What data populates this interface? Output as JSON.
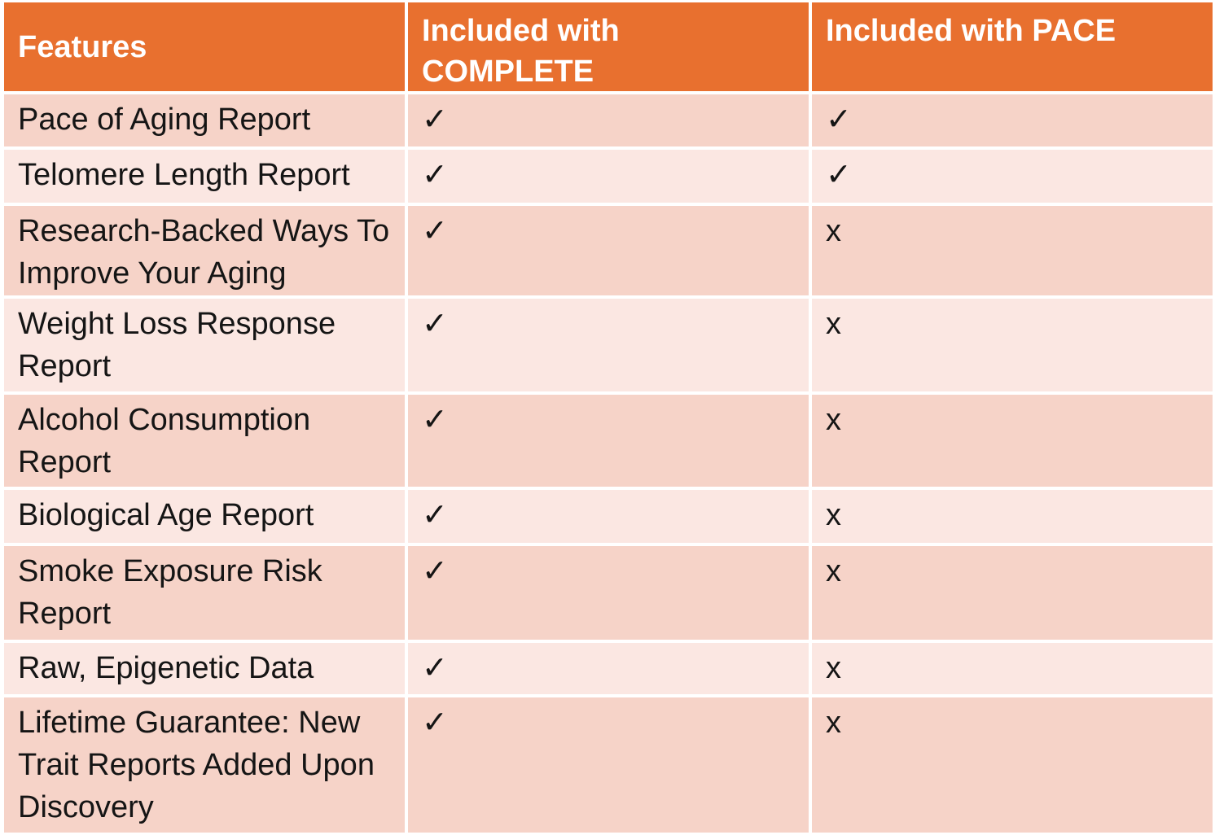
{
  "table": {
    "columns": [
      {
        "label": "Features"
      },
      {
        "label": "Included with COMPLETE"
      },
      {
        "label": "Included with PACE"
      }
    ],
    "rows": [
      {
        "feature": "Pace of Aging Report",
        "complete": "✓",
        "pace": "✓"
      },
      {
        "feature": "Telomere Length Report",
        "complete": "✓",
        "pace": "✓"
      },
      {
        "feature": "Research-Backed Ways To Improve Your Aging",
        "complete": "✓",
        "pace": "x"
      },
      {
        "feature": "Weight Loss Response Report",
        "complete": "✓",
        "pace": "x"
      },
      {
        "feature": "Alcohol Consumption Report",
        "complete": "✓",
        "pace": "x"
      },
      {
        "feature": "Biological Age Report",
        "complete": "✓",
        "pace": "x"
      },
      {
        "feature": "Smoke Exposure Risk Report",
        "complete": "✓",
        "pace": "x"
      },
      {
        "feature": "Raw, Epigenetic Data",
        "complete": "✓",
        "pace": "x"
      },
      {
        "feature": "Lifetime Guarantee: New Trait Reports Added Upon Discovery",
        "complete": "✓",
        "pace": "x"
      }
    ],
    "marks": {
      "included": "✓",
      "not_included": "x"
    },
    "colors": {
      "header_bg": "#E8702F",
      "header_text": "#FFFFFF",
      "row_dark": "#F6D3C8",
      "row_light": "#FBE7E2",
      "grid_lines": "#FFFFFF",
      "body_text": "#151515"
    }
  },
  "chart_data": {
    "type": "table",
    "title": "",
    "columns": [
      "Features",
      "Included with COMPLETE",
      "Included with PACE"
    ],
    "rows": [
      [
        "Pace of Aging Report",
        "✓",
        "✓"
      ],
      [
        "Telomere Length Report",
        "✓",
        "✓"
      ],
      [
        "Research-Backed Ways To Improve Your Aging",
        "✓",
        "x"
      ],
      [
        "Weight Loss Response Report",
        "✓",
        "x"
      ],
      [
        "Alcohol Consumption Report",
        "✓",
        "x"
      ],
      [
        "Biological Age Report",
        "✓",
        "x"
      ],
      [
        "Smoke Exposure Risk Report",
        "✓",
        "x"
      ],
      [
        "Raw, Epigenetic Data",
        "✓",
        "x"
      ],
      [
        "Lifetime Guarantee: New Trait Reports Added Upon Discovery",
        "✓",
        "x"
      ]
    ],
    "layout_hints": {
      "header_fill": "#E8702F",
      "banded_rows": true,
      "band_colors": [
        "#F6D3C8",
        "#FBE7E2"
      ],
      "check_symbol": "✓",
      "cross_symbol": "x"
    }
  }
}
